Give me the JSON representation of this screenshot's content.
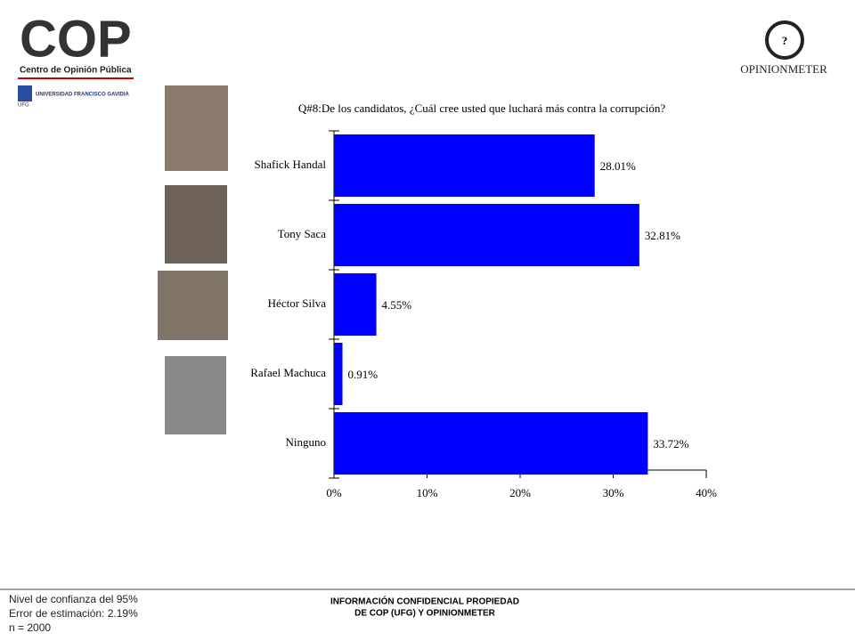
{
  "logos": {
    "main": "COP",
    "main_caption": "Centro de Opinión Pública",
    "university": "UNIVERSIDAD FRANCISCO GAVIDIA",
    "university_short": "UFG",
    "partner": "OPINIONMETER"
  },
  "chart_data": {
    "type": "hbar",
    "title": "Q#8:De los candidatos, ¿Cuál cree usted que luchará más contra la corrupción?",
    "categories": [
      "Shafick Handal",
      "Tony Saca",
      "Héctor Silva",
      "Rafael Machuca",
      "Ninguno"
    ],
    "values": [
      28.01,
      32.81,
      4.55,
      0.91,
      33.72
    ],
    "value_labels": [
      "28.01%",
      "32.81%",
      "4.55%",
      "0.91%",
      "33.72%"
    ],
    "color": "#0000ff",
    "xlim": [
      0,
      40
    ],
    "xticks": [
      {
        "value": 0,
        "label": "0%"
      },
      {
        "value": 10,
        "label": "10%"
      },
      {
        "value": 20,
        "label": "20%"
      },
      {
        "value": 30,
        "label": "30%"
      },
      {
        "value": 40,
        "label": "40%"
      }
    ]
  },
  "footer": {
    "stats": [
      "Nivel de confianza del 95%",
      "Error de estimación: 2.19%",
      "n = 2000"
    ],
    "confidential": [
      "INFORMACIÓN CONFIDENCIAL PROPIEDAD",
      "DE COP (UFG) Y OPINIONMETER"
    ]
  }
}
